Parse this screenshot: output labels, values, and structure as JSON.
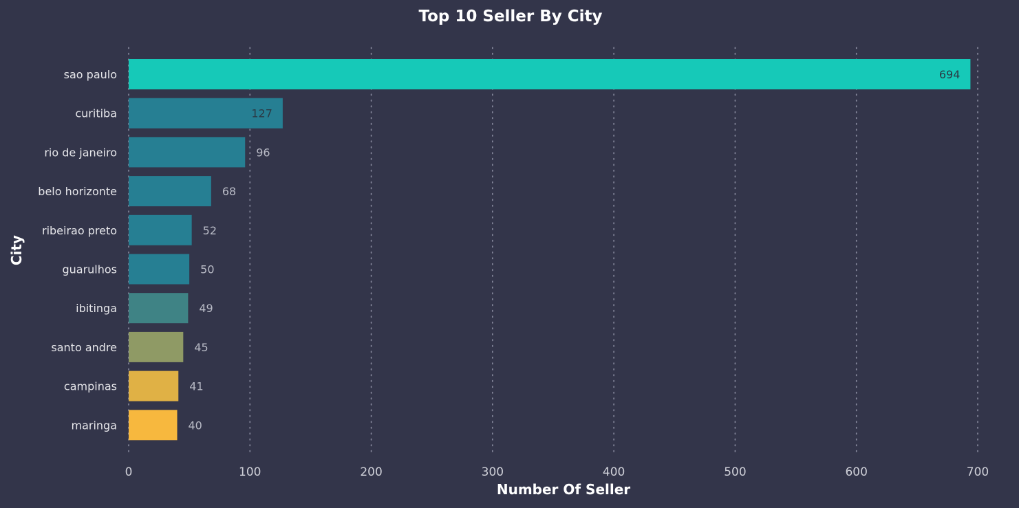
{
  "chart_data": {
    "type": "bar",
    "orientation": "horizontal",
    "title": "Top 10 Seller By City",
    "xlabel": "Number Of Seller",
    "ylabel": "City",
    "xlim": [
      0,
      700
    ],
    "xticks": [
      0,
      100,
      200,
      300,
      400,
      500,
      600,
      700
    ],
    "grid": "vertical-dotted",
    "categories": [
      "sao paulo",
      "curitiba",
      "rio de janeiro",
      "belo horizonte",
      "ribeirao preto",
      "guarulhos",
      "ibitinga",
      "santo andre",
      "campinas",
      "maringa"
    ],
    "values": [
      694,
      127,
      96,
      68,
      52,
      50,
      49,
      45,
      41,
      40
    ],
    "bar_colors": [
      "#16c9b8",
      "#267f93",
      "#267f93",
      "#267f93",
      "#267f93",
      "#267f93",
      "#3f8385",
      "#8f9a65",
      "#e0b145",
      "#f7b83e"
    ],
    "background": "#33354a"
  }
}
